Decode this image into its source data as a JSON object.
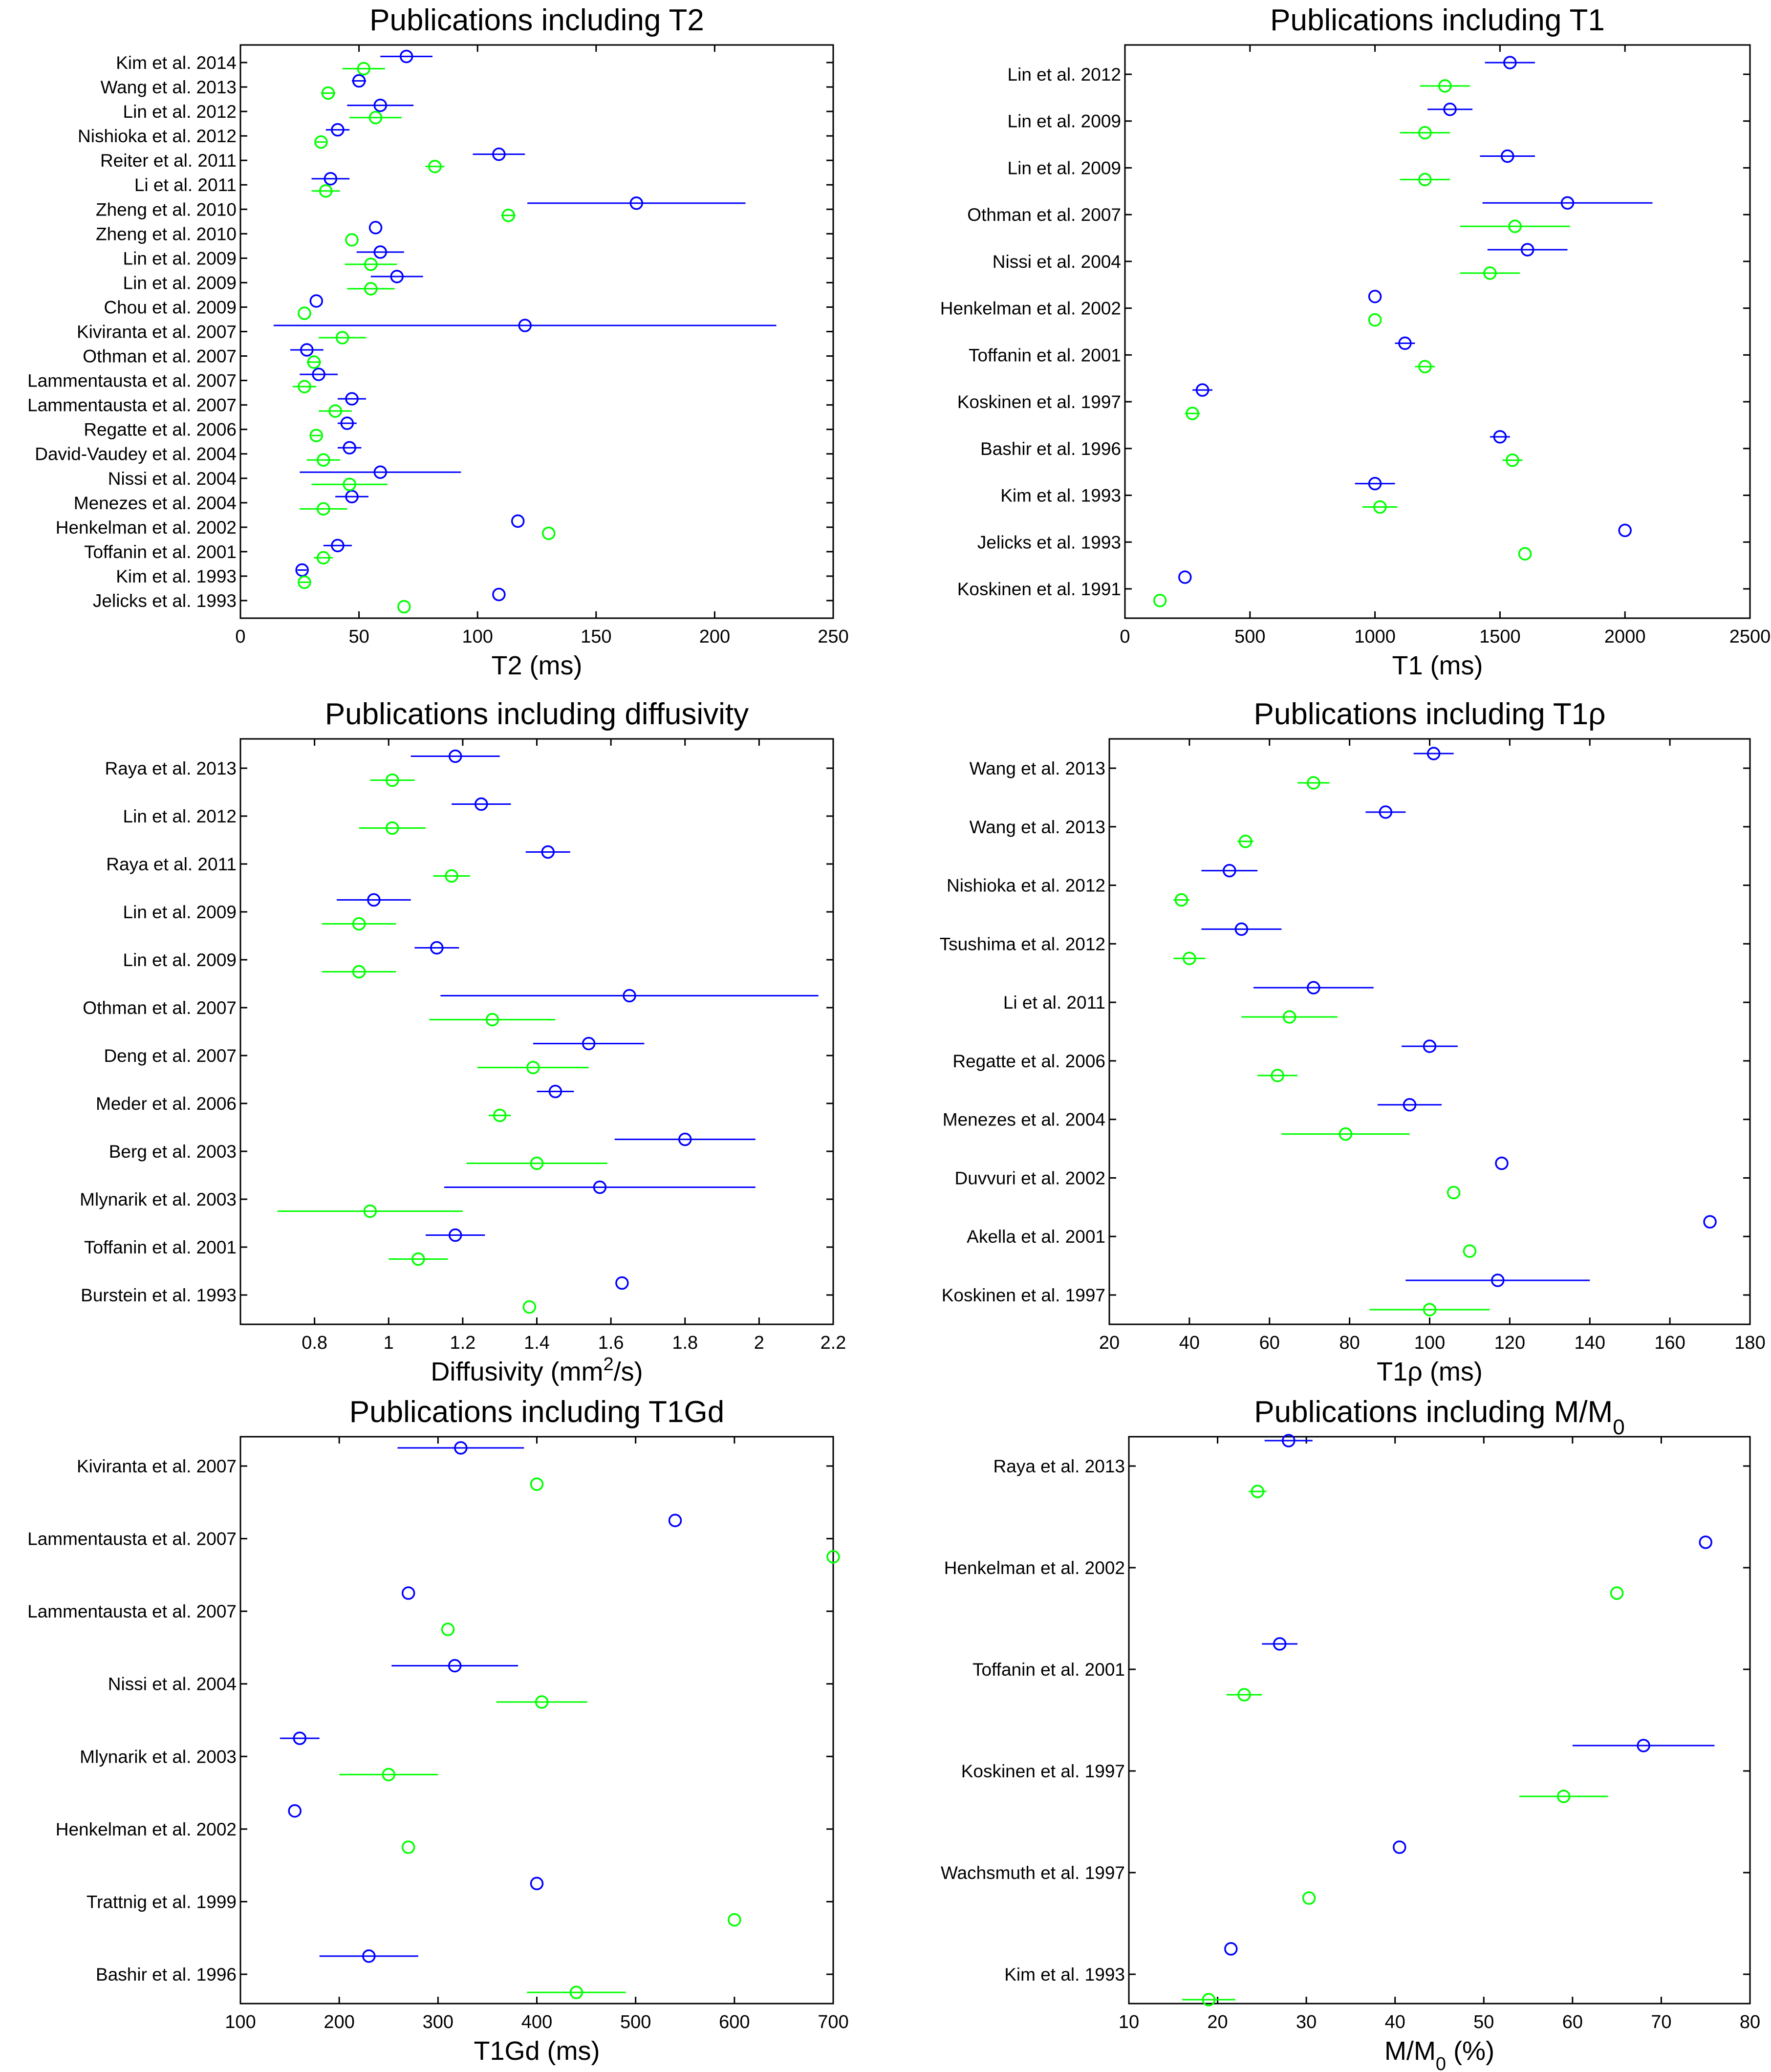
{
  "colors": {
    "blue": "#0000ff",
    "green": "#00ff00",
    "axis": "#000000"
  },
  "chart_data": [
    {
      "id": "t2",
      "type": "scatter",
      "title": "Publications including T2",
      "xlabel": "T2 (ms)",
      "xlim": [
        0,
        250
      ],
      "xticks": [
        0,
        50,
        100,
        150,
        200,
        250
      ],
      "categories": [
        "Kim et al. 2014",
        "Wang et al. 2013",
        "Lin et al. 2012",
        "Nishioka et al. 2012",
        "Reiter et al. 2011",
        "Li et al. 2011",
        "Zheng et al. 2010",
        "Zheng et al. 2010",
        "Lin et al. 2009",
        "Lin et al. 2009",
        "Chou et al. 2009",
        "Kiviranta et al. 2007",
        "Othman et al. 2007",
        "Lammentausta et al. 2007",
        "Lammentausta et al. 2007",
        "Regatte et al. 2006",
        "David-Vaudey et al. 2004",
        "Nissi et al. 2004",
        "Menezes et al. 2004",
        "Henkelman et al. 2002",
        "Toffanin et al. 2001",
        "Kim et al. 1993",
        "Jelicks et al. 1993"
      ],
      "series": [
        {
          "name": "blue",
          "color": "blue",
          "values": [
            70,
            50,
            59,
            41,
            109,
            38,
            167,
            57,
            59,
            66,
            32,
            120,
            28,
            33,
            47,
            45,
            46,
            59,
            47,
            117,
            41,
            26,
            109
          ],
          "errors": [
            11,
            3,
            14,
            5,
            11,
            8,
            46,
            0,
            10,
            11,
            0,
            106,
            7,
            8,
            6,
            4,
            5,
            34,
            7,
            0,
            6,
            2,
            0
          ]
        },
        {
          "name": "green",
          "color": "green",
          "values": [
            52,
            37,
            57,
            34,
            82,
            36,
            113,
            47,
            55,
            55,
            27,
            43,
            31,
            27,
            40,
            32,
            35,
            46,
            35,
            130,
            35,
            27,
            69
          ],
          "errors": [
            9,
            3,
            11,
            2,
            4,
            6,
            3,
            0,
            11,
            10,
            0,
            10,
            3,
            5,
            7,
            2,
            7,
            16,
            10,
            0,
            4,
            2,
            0
          ]
        }
      ]
    },
    {
      "id": "t1",
      "type": "scatter",
      "title": "Publications including T1",
      "xlabel": "T1 (ms)",
      "xlim": [
        0,
        2500
      ],
      "xticks": [
        0,
        500,
        1000,
        1500,
        2000,
        2500
      ],
      "categories": [
        "Lin et al. 2012",
        "Lin et al. 2009",
        "Lin et al. 2009",
        "Othman et al. 2007",
        "Nissi et al. 2004",
        "Henkelman et al. 2002",
        "Toffanin et al. 2001",
        "Koskinen et al. 1997",
        "Bashir et al. 1996",
        "Kim et al. 1993",
        "Jelicks et al. 1993",
        "Koskinen et al. 1991"
      ],
      "series": [
        {
          "name": "blue",
          "color": "blue",
          "values": [
            1540,
            1300,
            1530,
            1770,
            1610,
            1000,
            1120,
            310,
            1500,
            1000,
            2000,
            240
          ],
          "errors": [
            100,
            90,
            110,
            340,
            160,
            0,
            40,
            40,
            40,
            80,
            0,
            0
          ]
        },
        {
          "name": "green",
          "color": "green",
          "values": [
            1280,
            1200,
            1200,
            1560,
            1460,
            1000,
            1200,
            270,
            1550,
            1020,
            1600,
            140
          ],
          "errors": [
            100,
            100,
            100,
            220,
            120,
            0,
            40,
            30,
            40,
            70,
            0,
            0
          ]
        }
      ]
    },
    {
      "id": "diffusivity",
      "type": "scatter",
      "title": "Publications including diffusivity",
      "xlabel": "Diffusivity (mm",
      "xlabel_sup": "2",
      "xlabel_tail": "/s)",
      "xlim": [
        0.6,
        2.2
      ],
      "xticks": [
        0.8,
        1.0,
        1.2,
        1.4,
        1.6,
        1.8,
        2.0,
        2.2
      ],
      "xtick_labels": [
        "0.8",
        "1",
        "1.2",
        "1.4",
        "1.6",
        "1.8",
        "2",
        "2.2"
      ],
      "categories": [
        "Raya et al. 2013",
        "Lin et al. 2012",
        "Raya et al. 2011",
        "Lin et al. 2009",
        "Lin et al. 2009",
        "Othman et al. 2007",
        "Deng et al. 2007",
        "Meder et al. 2006",
        "Berg et al. 2003",
        "Mlynarik et al. 2003",
        "Toffanin et al. 2001",
        "Burstein et al. 1993"
      ],
      "series": [
        {
          "name": "blue",
          "color": "blue",
          "values": [
            1.18,
            1.25,
            1.43,
            0.96,
            1.13,
            1.65,
            1.54,
            1.45,
            1.8,
            1.57,
            1.18,
            1.63
          ],
          "errors": [
            0.12,
            0.08,
            0.06,
            0.1,
            0.06,
            0.51,
            0.15,
            0.05,
            0.19,
            0.42,
            0.08,
            0
          ]
        },
        {
          "name": "green",
          "color": "green",
          "values": [
            1.01,
            1.01,
            1.17,
            0.92,
            0.92,
            1.28,
            1.39,
            1.3,
            1.4,
            0.95,
            1.08,
            1.38
          ],
          "errors": [
            0.06,
            0.09,
            0.05,
            0.1,
            0.1,
            0.17,
            0.15,
            0.03,
            0.19,
            0.25,
            0.08,
            0
          ]
        }
      ]
    },
    {
      "id": "t1rho",
      "type": "scatter",
      "title": "Publications including T1ρ",
      "xlabel": "T1ρ (ms)",
      "xlim": [
        20,
        180
      ],
      "xticks": [
        20,
        40,
        60,
        80,
        100,
        120,
        140,
        160,
        180
      ],
      "categories": [
        "Wang et al. 2013",
        "Wang et al. 2013",
        "Nishioka et al. 2012",
        "Tsushima et al. 2012",
        "Li et al. 2011",
        "Regatte et al. 2006",
        "Menezes et al. 2004",
        "Duvvuri et al. 2002",
        "Akella et al. 2001",
        "Koskinen et al. 1997"
      ],
      "series": [
        {
          "name": "blue",
          "color": "blue",
          "values": [
            101,
            89,
            50,
            53,
            71,
            100,
            95,
            118,
            170,
            117
          ],
          "errors": [
            5,
            5,
            7,
            10,
            15,
            7,
            8,
            0,
            0,
            23
          ]
        },
        {
          "name": "green",
          "color": "green",
          "values": [
            71,
            54,
            38,
            40,
            65,
            62,
            79,
            106,
            110,
            100
          ],
          "errors": [
            4,
            2,
            2,
            4,
            12,
            5,
            16,
            0,
            0,
            15
          ]
        }
      ]
    },
    {
      "id": "t1gd",
      "type": "scatter",
      "title": "Publications including T1Gd",
      "xlabel": "T1Gd (ms)",
      "xlim": [
        100,
        700
      ],
      "xticks": [
        100,
        200,
        300,
        400,
        500,
        600,
        700
      ],
      "categories": [
        "Kiviranta et al. 2007",
        "Lammentausta et al. 2007",
        "Lammentausta et al. 2007",
        "Nissi et al. 2004",
        "Mlynarik et al. 2003",
        "Henkelman et al. 2002",
        "Trattnig et al. 1999",
        "Bashir et al. 1996"
      ],
      "series": [
        {
          "name": "blue",
          "color": "blue",
          "values": [
            323,
            540,
            270,
            317,
            160,
            155,
            400,
            230
          ],
          "errors": [
            64,
            0,
            0,
            64,
            20,
            0,
            0,
            50
          ]
        },
        {
          "name": "green",
          "color": "green",
          "values": [
            400,
            700,
            310,
            405,
            250,
            270,
            600,
            440
          ],
          "errors": [
            0,
            0,
            0,
            46,
            50,
            0,
            0,
            50
          ]
        }
      ]
    },
    {
      "id": "mm0",
      "type": "scatter",
      "title": "Publications including M/M",
      "title_sub": "0",
      "xlabel": "M/M",
      "xlabel_sub": "0",
      "xlabel_tail": " (%)",
      "xlim": [
        10,
        80
      ],
      "xticks": [
        10,
        20,
        30,
        40,
        50,
        60,
        70,
        80
      ],
      "categories": [
        "Raya et al. 2013",
        "Henkelman et al. 2002",
        "Toffanin et al. 2001",
        "Koskinen et al. 1997",
        "Wachsmuth et al. 1997",
        "Kim et al. 1993"
      ],
      "series": [
        {
          "name": "blue",
          "color": "blue",
          "values": [
            28,
            75,
            27,
            68,
            40.5,
            21.5
          ],
          "errors": [
            2.7,
            0,
            2,
            8,
            0,
            0
          ]
        },
        {
          "name": "green",
          "color": "green",
          "values": [
            24.5,
            65,
            23,
            59,
            30.3,
            19
          ],
          "errors": [
            1,
            0,
            2,
            5,
            0,
            3
          ]
        }
      ]
    }
  ]
}
